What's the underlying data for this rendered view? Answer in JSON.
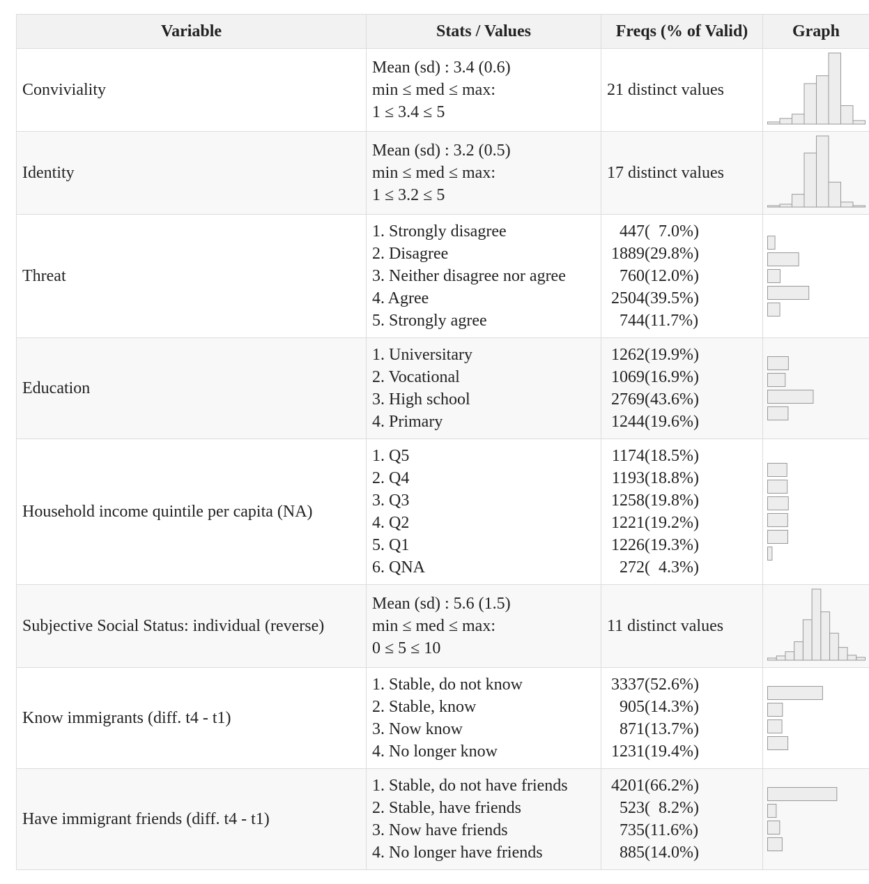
{
  "header": [
    "Variable",
    "Stats / Values",
    "Freqs (% of Valid)",
    "Graph"
  ],
  "rows": [
    {
      "variable": "Conviviality",
      "stats": [
        "Mean (sd) : 3.4 (0.6)",
        "min ≤ med ≤ max:",
        "1 ≤ 3.4 ≤ 5"
      ],
      "freqs": "21 distinct values",
      "histogram": [
        3,
        8,
        14,
        57,
        68,
        100,
        26,
        5
      ]
    },
    {
      "variable": "Identity",
      "stats": [
        "Mean (sd) : 3.2 (0.5)",
        "min ≤ med ≤ max:",
        "1 ≤ 3.2 ≤ 5"
      ],
      "freqs": "17 distinct values",
      "histogram": [
        2,
        4,
        18,
        76,
        100,
        35,
        7,
        2
      ]
    },
    {
      "variable": "Threat",
      "stats": [
        "1. Strongly disagree",
        "2. Disagree",
        "3. Neither disagree nor agree",
        "4. Agree",
        "5. Strongly agree"
      ],
      "freqs": [
        {
          "count": 447,
          "pct": "(  7.0%)"
        },
        {
          "count": 1889,
          "pct": "(29.8%)"
        },
        {
          "count": 760,
          "pct": "(12.0%)"
        },
        {
          "count": 2504,
          "pct": "(39.5%)"
        },
        {
          "count": 744,
          "pct": "(11.7%)"
        }
      ]
    },
    {
      "variable": "Education",
      "stats": [
        "1. Universitary",
        "2. Vocational",
        "3. High school",
        "4. Primary"
      ],
      "freqs": [
        {
          "count": 1262,
          "pct": "(19.9%)"
        },
        {
          "count": 1069,
          "pct": "(16.9%)"
        },
        {
          "count": 2769,
          "pct": "(43.6%)"
        },
        {
          "count": 1244,
          "pct": "(19.6%)"
        }
      ]
    },
    {
      "variable": "Household income quintile per capita (NA)",
      "stats": [
        "1. Q5",
        "2. Q4",
        "3. Q3",
        "4. Q2",
        "5. Q1",
        "6. QNA"
      ],
      "freqs": [
        {
          "count": 1174,
          "pct": "(18.5%)"
        },
        {
          "count": 1193,
          "pct": "(18.8%)"
        },
        {
          "count": 1258,
          "pct": "(19.8%)"
        },
        {
          "count": 1221,
          "pct": "(19.2%)"
        },
        {
          "count": 1226,
          "pct": "(19.3%)"
        },
        {
          "count": 272,
          "pct": "(  4.3%)"
        }
      ]
    },
    {
      "variable": "Subjective Social Status: individual (reverse)",
      "stats": [
        "Mean (sd) : 5.6 (1.5)",
        "min ≤ med ≤ max:",
        "0 ≤ 5 ≤ 10"
      ],
      "freqs": "11 distinct values",
      "histogram": [
        3,
        6,
        12,
        26,
        57,
        100,
        68,
        38,
        18,
        7,
        4
      ]
    },
    {
      "variable": "Know immigrants (diff. t4 - t1)",
      "stats": [
        "1. Stable, do not know",
        "2. Stable, know",
        "3. Now know",
        "4. No longer know"
      ],
      "freqs": [
        {
          "count": 3337,
          "pct": "(52.6%)"
        },
        {
          "count": 905,
          "pct": "(14.3%)"
        },
        {
          "count": 871,
          "pct": "(13.7%)"
        },
        {
          "count": 1231,
          "pct": "(19.4%)"
        }
      ]
    },
    {
      "variable": "Have immigrant friends (diff. t4 - t1)",
      "stats": [
        "1. Stable, do not have friends",
        "2. Stable, have friends",
        "3. Now have friends",
        "4. No longer have friends"
      ],
      "freqs": [
        {
          "count": 4201,
          "pct": "(66.2%)"
        },
        {
          "count": 523,
          "pct": "(  8.2%)"
        },
        {
          "count": 735,
          "pct": "(11.6%)"
        },
        {
          "count": 885,
          "pct": "(14.0%)"
        }
      ]
    }
  ]
}
